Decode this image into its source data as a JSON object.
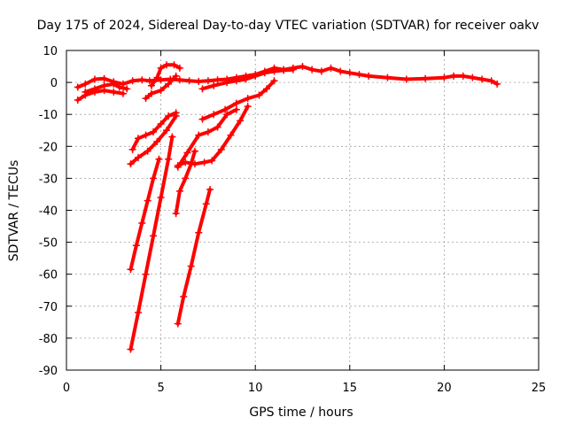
{
  "chart_data": {
    "type": "scatter",
    "title": "Day 175 of 2024, Sidereal Day-to-day VTEC variation (SDTVAR) for receiver oakv",
    "xlabel": "GPS time / hours",
    "ylabel": "SDTVAR / TECUs",
    "xlim": [
      0,
      25
    ],
    "ylim": [
      -90,
      10
    ],
    "xticks": [
      "0",
      "5",
      "10",
      "15",
      "20",
      "25"
    ],
    "yticks": [
      "10",
      "0",
      "-10",
      "-20",
      "-30",
      "-40",
      "-50",
      "-60",
      "-70",
      "-80",
      "-90"
    ],
    "grid": true,
    "marker": "+",
    "color": "#ff0000",
    "series": [
      {
        "name": "track-main",
        "x": [
          0.6,
          1.0,
          1.5,
          2.0,
          2.5,
          3.0,
          3.5,
          4.0,
          4.4,
          5.0,
          5.5,
          6.0,
          6.5,
          7.0,
          7.5,
          8.0,
          8.5,
          9.0,
          9.5,
          10.0,
          10.5,
          11.0,
          11.5,
          12.0,
          12.5,
          13.0,
          13.5,
          14.0,
          14.5,
          15.0,
          15.5,
          16.0,
          17.0,
          18.0,
          19.0,
          20.0,
          20.5,
          21.0,
          21.5,
          22.0,
          22.5,
          22.8
        ],
        "y": [
          -1.5,
          -0.5,
          1.0,
          1.2,
          0.2,
          -0.5,
          0.5,
          0.8,
          0.5,
          0.8,
          1.0,
          0.8,
          0.5,
          0.3,
          0.5,
          0.8,
          1.0,
          1.5,
          2.0,
          2.5,
          3.5,
          4.5,
          4.0,
          4.5,
          5.0,
          4.0,
          3.5,
          4.5,
          3.5,
          3.0,
          2.5,
          2.0,
          1.5,
          1.0,
          1.2,
          1.5,
          2.0,
          2.0,
          1.5,
          1.0,
          0.5,
          -0.5
        ]
      },
      {
        "name": "track-loop-a",
        "x": [
          0.6,
          1.0,
          1.5,
          2.0,
          2.5,
          3.0
        ],
        "y": [
          -5.5,
          -4.0,
          -3.0,
          -2.5,
          -3.0,
          -3.5
        ]
      },
      {
        "name": "track-loop-b",
        "x": [
          1.0,
          1.5,
          2.0,
          2.5,
          2.8,
          3.2
        ],
        "y": [
          -3.0,
          -2.0,
          -1.0,
          -0.5,
          -1.5,
          -2.0
        ]
      },
      {
        "name": "track-upper-rise",
        "x": [
          4.5,
          4.8,
          5.0,
          5.3,
          5.7,
          6.0
        ],
        "y": [
          -1.0,
          1.5,
          4.5,
          5.5,
          5.5,
          4.5
        ]
      },
      {
        "name": "track-upper-rise-2",
        "x": [
          4.2,
          4.5,
          5.0,
          5.4,
          5.8
        ],
        "y": [
          -5.0,
          -3.5,
          -2.5,
          -0.5,
          2.0
        ]
      },
      {
        "name": "track-mid-a",
        "x": [
          3.5,
          3.8,
          4.2,
          4.6,
          5.0,
          5.4,
          5.8
        ],
        "y": [
          -21.0,
          -17.5,
          -16.5,
          -15.5,
          -13.0,
          -10.5,
          -9.5
        ]
      },
      {
        "name": "track-mid-b",
        "x": [
          3.4,
          3.8,
          4.3,
          4.8,
          5.3,
          5.8
        ],
        "y": [
          -25.5,
          -23.5,
          -21.5,
          -18.5,
          -15.0,
          -10.5
        ]
      },
      {
        "name": "track-drop-a",
        "x": [
          3.4,
          3.7,
          4.0,
          4.3,
          4.6,
          4.9
        ],
        "y": [
          -58.5,
          -51.0,
          -44.0,
          -37.0,
          -30.0,
          -24.0
        ]
      },
      {
        "name": "track-drop-b",
        "x": [
          3.4,
          3.8,
          4.2,
          4.6,
          5.0,
          5.4,
          5.6
        ],
        "y": [
          -83.5,
          -72.0,
          -60.0,
          -48.0,
          -36.0,
          -24.0,
          -17.0
        ]
      },
      {
        "name": "track-drop-c",
        "x": [
          5.8,
          6.0,
          6.3,
          6.6,
          6.8
        ],
        "y": [
          -41.0,
          -34.0,
          -30.0,
          -25.5,
          -21.5
        ]
      },
      {
        "name": "track-drop-d",
        "x": [
          5.9,
          6.2,
          6.6,
          7.0,
          7.4,
          7.6
        ],
        "y": [
          -75.5,
          -67.0,
          -57.5,
          -47.0,
          -38.0,
          -33.5
        ]
      },
      {
        "name": "track-low-band",
        "x": [
          5.9,
          6.3,
          6.8,
          7.3,
          7.7,
          8.2,
          8.7,
          9.2,
          9.6
        ],
        "y": [
          -26.0,
          -25.0,
          -25.5,
          -25.0,
          -24.5,
          -21.0,
          -16.5,
          -12.0,
          -7.5
        ]
      },
      {
        "name": "track-low-mid",
        "x": [
          5.9,
          6.4,
          7.0,
          7.5,
          8.0,
          8.5,
          9.0
        ],
        "y": [
          -26.5,
          -22.0,
          -16.5,
          -15.5,
          -14.0,
          -10.0,
          -8.5
        ]
      },
      {
        "name": "track-climb",
        "x": [
          7.2,
          7.8,
          8.4,
          9.0,
          9.6,
          10.2,
          10.6,
          11.0
        ],
        "y": [
          -11.5,
          -10.0,
          -8.5,
          -6.5,
          -5.0,
          -4.0,
          -2.0,
          0.5
        ]
      },
      {
        "name": "track-upper-right",
        "x": [
          7.2,
          7.8,
          8.5,
          9.0,
          9.5,
          10.0,
          10.5,
          11.0,
          11.5,
          12.0
        ],
        "y": [
          -2.0,
          -1.0,
          0.0,
          0.5,
          1.0,
          2.0,
          3.0,
          3.5,
          3.8,
          4.0
        ]
      }
    ]
  }
}
